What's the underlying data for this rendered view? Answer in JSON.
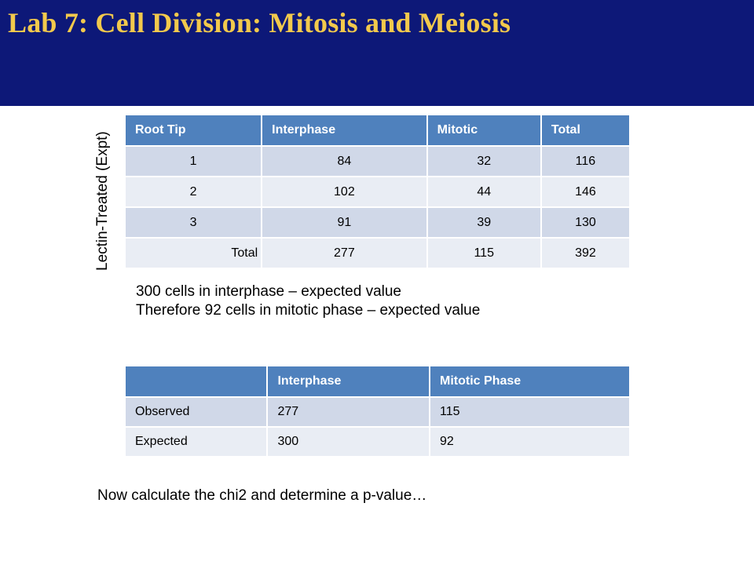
{
  "slide": {
    "title": "Lab 7: Cell Division: Mitosis and Meiosis",
    "side_label": "Lectin-Treated (Expt)"
  },
  "colors": {
    "header_background": "#0d1878",
    "title_text": "#f2c94c",
    "table_header": "#4f81bd",
    "table_row_dark": "#d0d8e8",
    "table_row_light": "#e9edf4"
  },
  "table1": {
    "headers": [
      "Root Tip",
      "Interphase",
      "Mitotic",
      "Total"
    ],
    "rows": [
      [
        "1",
        "84",
        "32",
        "116"
      ],
      [
        "2",
        "102",
        "44",
        "146"
      ],
      [
        "3",
        "91",
        "39",
        "130"
      ],
      [
        "Total",
        "277",
        "115",
        "392"
      ]
    ]
  },
  "notes": {
    "line1": "300 cells in interphase – expected value",
    "line2": "Therefore 92 cells in mitotic phase – expected value"
  },
  "table2": {
    "headers": [
      "",
      "Interphase",
      "Mitotic Phase"
    ],
    "rows": [
      [
        "Observed",
        "277",
        "115"
      ],
      [
        "Expected",
        "300",
        "92"
      ]
    ]
  },
  "footer": {
    "text": "Now calculate the chi2 and determine a p-value…"
  }
}
